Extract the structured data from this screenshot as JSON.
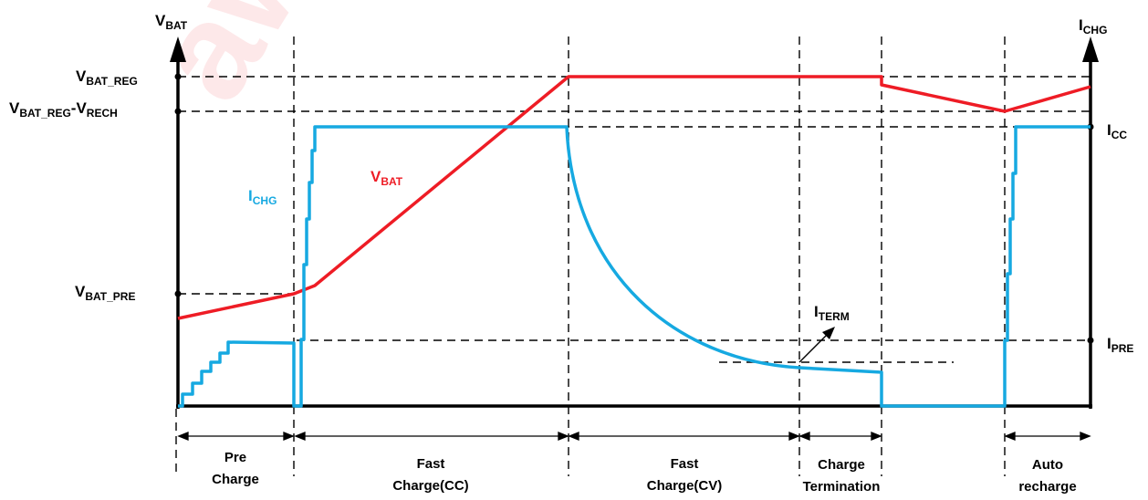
{
  "colors": {
    "vbat_curve": "#ee1c25",
    "ichg_curve": "#16a9e1",
    "axis": "#000000"
  },
  "axes": {
    "left_label": {
      "main": "V",
      "sub": "BAT"
    },
    "right_label": {
      "main": "I",
      "sub": "CHG"
    }
  },
  "left_ticks": {
    "vbat_reg": {
      "main": "V",
      "sub": "BAT_REG"
    },
    "vbat_reg_minus_vrech": {
      "main1": "V",
      "sub1": "BAT_REG",
      "sep": "-V",
      "sub2": "RECH"
    },
    "vbat_pre": {
      "main": "V",
      "sub": "BAT_PRE"
    }
  },
  "right_ticks": {
    "icc": {
      "main": "I",
      "sub": "CC"
    },
    "ipre": {
      "main": "I",
      "sub": "PRE"
    }
  },
  "curve_labels": {
    "ichg": {
      "main": "I",
      "sub": "CHG"
    },
    "vbat": {
      "main": "V",
      "sub": "BAT"
    },
    "iterm": {
      "main": "I",
      "sub": "TERM"
    }
  },
  "phases": {
    "pre_charge": {
      "line1": "Pre",
      "line2": "Charge"
    },
    "fast_cc": {
      "line1": "Fast",
      "line2": "Charge(CC)"
    },
    "fast_cv": {
      "line1": "Fast",
      "line2": "Charge(CV)"
    },
    "termination": {
      "line1": "Charge",
      "line2": "Termination"
    },
    "auto_recharge": {
      "line1": "Auto",
      "line2": "recharge"
    }
  },
  "watermark": "awinic"
}
